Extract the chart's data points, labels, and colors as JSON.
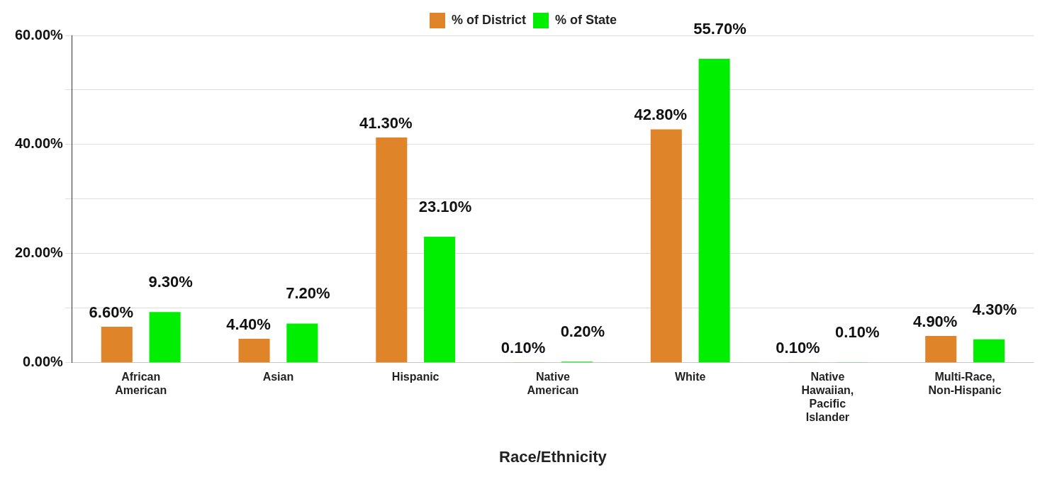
{
  "chart_data": {
    "type": "bar",
    "xlabel": "Race/Ethnicity",
    "categories": [
      "African American",
      "Asian",
      "Hispanic",
      "Native American",
      "White",
      "Native Hawaiian, Pacific Islander",
      "Multi-Race, Non-Hispanic"
    ],
    "series": [
      {
        "name": "% of District",
        "color": "#e0842a",
        "values": [
          6.6,
          4.4,
          41.3,
          0.1,
          42.8,
          0.1,
          4.9
        ],
        "value_labels": [
          "6.60%",
          "4.40%",
          "41.30%",
          "0.10%",
          "42.80%",
          "0.10%",
          "4.90%"
        ]
      },
      {
        "name": "% of State",
        "color": "#00ee00",
        "values": [
          9.3,
          7.2,
          23.1,
          0.2,
          55.7,
          0.1,
          4.3
        ],
        "value_labels": [
          "9.30%",
          "7.20%",
          "23.10%",
          "0.20%",
          "55.70%",
          "0.10%",
          "4.30%"
        ]
      }
    ],
    "ylim": [
      0,
      60
    ],
    "yticks": [
      {
        "value": 0,
        "label": "0.00%"
      },
      {
        "value": 10,
        "label": null
      },
      {
        "value": 20,
        "label": "20.00%"
      },
      {
        "value": 30,
        "label": null
      },
      {
        "value": 40,
        "label": "40.00%"
      },
      {
        "value": 50,
        "label": null
      },
      {
        "value": 60,
        "label": "60.00%"
      }
    ],
    "grid": "y",
    "legend": "top"
  }
}
